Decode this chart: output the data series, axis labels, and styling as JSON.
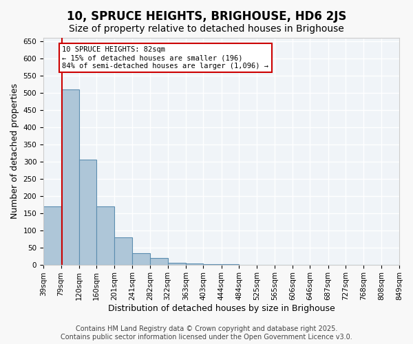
{
  "title": "10, SPRUCE HEIGHTS, BRIGHOUSE, HD6 2JS",
  "subtitle": "Size of property relative to detached houses in Brighouse",
  "xlabel": "Distribution of detached houses by size in Brighouse",
  "ylabel": "Number of detached properties",
  "bin_edges": [
    39,
    79,
    120,
    160,
    201,
    241,
    282,
    322,
    363,
    403,
    444,
    484,
    525,
    565,
    606,
    646,
    687,
    727,
    768,
    808,
    849
  ],
  "bin_labels": [
    "39sqm",
    "79sqm",
    "120sqm",
    "160sqm",
    "201sqm",
    "241sqm",
    "282sqm",
    "322sqm",
    "363sqm",
    "403sqm",
    "444sqm",
    "484sqm",
    "525sqm",
    "565sqm",
    "606sqm",
    "646sqm",
    "687sqm",
    "727sqm",
    "768sqm",
    "808sqm",
    "849sqm"
  ],
  "bar_heights": [
    170,
    510,
    305,
    170,
    80,
    33,
    20,
    5,
    3,
    1,
    1,
    0,
    0,
    0,
    0,
    0,
    0,
    0,
    0,
    0
  ],
  "bar_color": "#aec6d8",
  "bar_edge_color": "#5b8db0",
  "property_size": 82,
  "property_bin_index": 1,
  "vline_color": "#cc0000",
  "annotation_text": "10 SPRUCE HEIGHTS: 82sqm\n← 15% of detached houses are smaller (196)\n84% of semi-detached houses are larger (1,096) →",
  "annotation_box_color": "#cc0000",
  "annotation_bg": "#ffffff",
  "ylim": [
    0,
    660
  ],
  "yticks": [
    0,
    50,
    100,
    150,
    200,
    250,
    300,
    350,
    400,
    450,
    500,
    550,
    600,
    650
  ],
  "footer_line1": "Contains HM Land Registry data © Crown copyright and database right 2025.",
  "footer_line2": "Contains public sector information licensed under the Open Government Licence v3.0.",
  "bg_color": "#f0f4f8",
  "grid_color": "#ffffff",
  "title_fontsize": 12,
  "subtitle_fontsize": 10,
  "axis_label_fontsize": 9,
  "tick_fontsize": 7.5,
  "footer_fontsize": 7
}
